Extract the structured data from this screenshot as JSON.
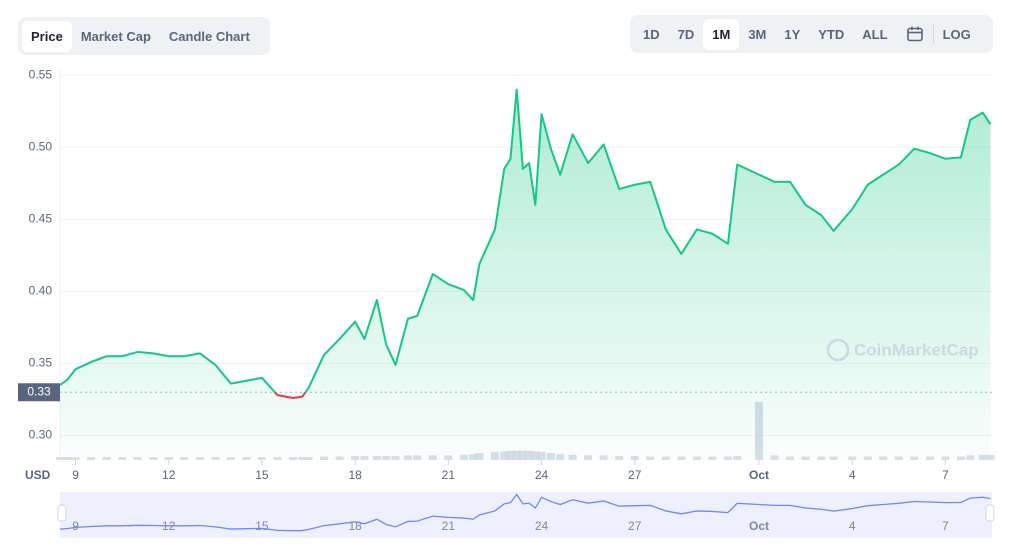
{
  "ui": {
    "tabs": [
      "Price",
      "Market Cap",
      "Candle Chart"
    ],
    "ranges": [
      "1D",
      "7D",
      "1M",
      "3M",
      "1Y",
      "YTD",
      "ALL"
    ],
    "log_button": "LOG"
  },
  "chart_data": {
    "type": "line",
    "y_label": "USD",
    "watermark": "CoinMarketCap",
    "reference": {
      "value": 0.33,
      "label": "0.33"
    },
    "series": [
      {
        "name": "Price",
        "color": "#16c784",
        "below_color": "#ea3943",
        "x": [
          8.5,
          8.75,
          9,
          9.5,
          10,
          10.5,
          11,
          11.5,
          12,
          12.5,
          13,
          13.5,
          14,
          14.5,
          15,
          15.5,
          16,
          16.3,
          16.5,
          17,
          17.5,
          18,
          18.3,
          18.7,
          19,
          19.3,
          19.7,
          20,
          20.5,
          21,
          21.5,
          21.8,
          22,
          22.5,
          22.8,
          23,
          23.2,
          23.4,
          23.6,
          23.8,
          24,
          24.3,
          24.6,
          25,
          25.5,
          26,
          26.5,
          27,
          27.5,
          28,
          28.5,
          29,
          29.5,
          30,
          30.3,
          31,
          31.5,
          32,
          32.5,
          33,
          33.4,
          34,
          34.5,
          35,
          35.5,
          36,
          36.5,
          37,
          37.5,
          37.8,
          38.2,
          38.45
        ],
        "values": [
          0.335,
          0.339,
          0.346,
          0.351,
          0.355,
          0.355,
          0.358,
          0.357,
          0.355,
          0.355,
          0.357,
          0.349,
          0.336,
          0.338,
          0.34,
          0.328,
          0.326,
          0.327,
          0.333,
          0.356,
          0.367,
          0.379,
          0.367,
          0.394,
          0.363,
          0.349,
          0.381,
          0.383,
          0.412,
          0.405,
          0.401,
          0.394,
          0.419,
          0.443,
          0.485,
          0.492,
          0.54,
          0.485,
          0.489,
          0.46,
          0.523,
          0.499,
          0.481,
          0.509,
          0.489,
          0.502,
          0.471,
          0.474,
          0.476,
          0.443,
          0.426,
          0.443,
          0.44,
          0.433,
          0.488,
          0.481,
          0.476,
          0.476,
          0.46,
          0.453,
          0.442,
          0.457,
          0.474,
          0.481,
          0.488,
          0.499,
          0.496,
          0.492,
          0.493,
          0.519,
          0.524,
          0.516
        ],
        "volume": [
          5,
          5,
          5,
          5,
          5,
          5,
          5,
          5,
          5,
          5,
          5,
          5,
          5,
          5,
          5,
          5,
          5,
          5,
          5,
          6,
          6,
          7,
          7,
          7,
          7,
          7,
          8,
          8,
          8,
          8,
          9,
          10,
          12,
          14,
          15,
          16,
          16,
          16,
          16,
          15,
          14,
          12,
          10,
          9,
          8,
          8,
          7,
          7,
          6,
          6,
          6,
          6,
          6,
          6,
          7,
          100,
          8,
          6,
          6,
          6,
          6,
          6,
          6,
          6,
          6,
          6,
          6,
          6,
          6,
          8,
          9,
          9
        ]
      }
    ],
    "xlim": [
      8.5,
      38.5
    ],
    "ylim": [
      0.283,
      0.555
    ],
    "xticks": [
      9,
      12,
      15,
      18,
      21,
      24,
      27,
      {
        "value": 31,
        "label": "Oct"
      },
      {
        "value": 34,
        "label": "4"
      },
      {
        "value": 37,
        "label": "7"
      }
    ],
    "yticks": [
      {
        "value": 0.3,
        "label": "0.30"
      },
      0.35,
      {
        "value": 0.4,
        "label": "0.40"
      },
      0.45,
      {
        "value": 0.5,
        "label": "0.50"
      },
      0.55
    ],
    "volume_lim": [
      0,
      100
    ],
    "grid": true
  }
}
